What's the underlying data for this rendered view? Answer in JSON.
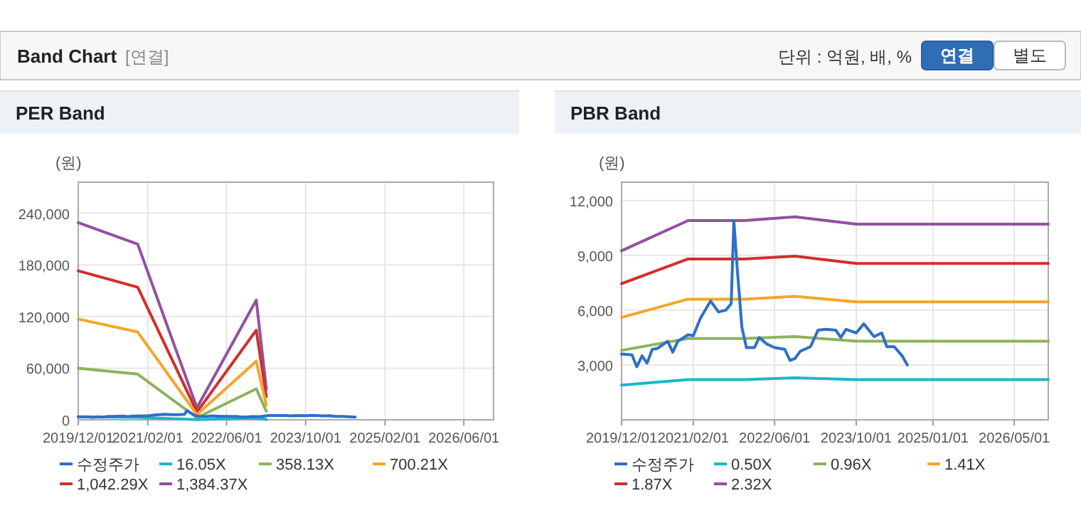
{
  "chart_data": [
    {
      "type": "other",
      "title": "Band Chart",
      "annotations": [
        "[연결]",
        "단위 : 억원, 배, %",
        "연결",
        "별도"
      ]
    },
    {
      "type": "line",
      "title": "PER Band",
      "ylabel": "(원)",
      "grid": true,
      "legend": "bottom",
      "xlim": [
        "2019-12-01",
        "2026-12-01"
      ],
      "ylim": [
        0,
        276000
      ],
      "xticks": [
        {
          "value": "2019-12-01",
          "label": "2019/12/01"
        },
        {
          "value": "2021-02-01",
          "label": "2021/02/01"
        },
        {
          "value": "2022-06-01",
          "label": "2022/06/01"
        },
        {
          "value": "2023-10-01",
          "label": "2023/10/01"
        },
        {
          "value": "2025-02-01",
          "label": "2025/02/01"
        },
        {
          "value": "2026-06-01",
          "label": "2026/06/01"
        }
      ],
      "yticks": [
        {
          "value": 0,
          "label": "0"
        },
        {
          "value": 60000,
          "label": "60,000"
        },
        {
          "value": 120000,
          "label": "120,000"
        },
        {
          "value": 180000,
          "label": "180,000"
        },
        {
          "value": 240000,
          "label": "240,000"
        }
      ],
      "series": [
        {
          "name": "수정주가",
          "color": "#2f6fc8",
          "x": [
            "2019-12-01",
            "2020-02-01",
            "2020-03-01",
            "2020-04-01",
            "2020-05-01",
            "2020-06-01",
            "2020-07-01",
            "2020-09-01",
            "2020-10-01",
            "2020-11-01",
            "2021-01-01",
            "2021-02-01",
            "2021-03-15",
            "2021-05-15",
            "2021-07-01",
            "2021-08-15",
            "2021-09-15",
            "2021-10-01",
            "2021-10-20",
            "2021-11-18",
            "2021-12-15",
            "2022-02-01",
            "2022-03-01",
            "2022-04-15",
            "2022-06-01",
            "2022-08-01",
            "2022-09-01",
            "2022-10-01",
            "2022-11-01",
            "2023-01-01",
            "2023-02-15",
            "2023-04-01",
            "2023-06-01",
            "2023-07-01",
            "2023-08-01",
            "2023-10-01",
            "2023-11-15",
            "2024-01-15",
            "2024-03-01",
            "2024-04-01",
            "2024-05-15",
            "2024-07-01",
            "2024-08-01"
          ],
          "values": [
            3600,
            3550,
            2900,
            3500,
            3100,
            3850,
            3900,
            4300,
            3700,
            4300,
            4650,
            4600,
            5550,
            6500,
            5900,
            6000,
            6350,
            10900,
            8400,
            5050,
            3950,
            3950,
            4500,
            4150,
            3950,
            3850,
            3250,
            3350,
            3750,
            4000,
            4900,
            4950,
            4900,
            4500,
            4950,
            4750,
            5250,
            4550,
            4750,
            4000,
            4000,
            3500,
            3000
          ]
        },
        {
          "name": "16.05X",
          "color": "#1fb5c9",
          "x": [
            "2019-12-01",
            "2020-12-01",
            "2021-12-01",
            "2022-12-01",
            "2023-02-01"
          ],
          "values": [
            3300,
            2900,
            200,
            2000,
            500
          ]
        },
        {
          "name": "358.13X",
          "color": "#8db35a",
          "x": [
            "2019-12-01",
            "2020-12-01",
            "2021-12-01",
            "2022-12-01",
            "2023-02-01"
          ],
          "values": [
            60000,
            53000,
            2500,
            36000,
            10000
          ]
        },
        {
          "name": "700.21X",
          "color": "#f5a52a",
          "x": [
            "2019-12-01",
            "2020-12-01",
            "2021-12-01",
            "2022-12-01",
            "2023-02-01"
          ],
          "values": [
            117000,
            102000,
            6000,
            68000,
            17000
          ]
        },
        {
          "name": "1,042.29X",
          "color": "#d12f2a",
          "x": [
            "2019-12-01",
            "2020-12-01",
            "2021-12-01",
            "2022-12-01",
            "2023-02-01"
          ],
          "values": [
            173000,
            154000,
            9000,
            104000,
            27000
          ]
        },
        {
          "name": "1,384.37X",
          "color": "#9350a0",
          "x": [
            "2019-12-01",
            "2020-12-01",
            "2021-12-01",
            "2022-12-01",
            "2023-02-01"
          ],
          "values": [
            229000,
            204000,
            14000,
            139000,
            36000
          ]
        }
      ]
    },
    {
      "type": "line",
      "title": "PBR Band",
      "ylabel": "(원)",
      "grid": true,
      "legend": "bottom",
      "xlim": [
        "2019-12-01",
        "2026-11-20"
      ],
      "ylim": [
        0,
        13000
      ],
      "xticks": [
        {
          "value": "2019-12-01",
          "label": "2019/12/01"
        },
        {
          "value": "2021-02-01",
          "label": "2021/02/01"
        },
        {
          "value": "2022-06-01",
          "label": "2022/06/01"
        },
        {
          "value": "2023-10-01",
          "label": "2023/10/01"
        },
        {
          "value": "2025-01-01",
          "label": "2025/01/01"
        },
        {
          "value": "2026-05-01",
          "label": "2026/05/01"
        }
      ],
      "yticks": [
        {
          "value": 3000,
          "label": "3,000"
        },
        {
          "value": 6000,
          "label": "6,000"
        },
        {
          "value": 9000,
          "label": "9,000"
        },
        {
          "value": 12000,
          "label": "12,000"
        }
      ],
      "series": [
        {
          "name": "수정주가",
          "color": "#2f6fc8",
          "x": [
            "2019-12-01",
            "2020-02-01",
            "2020-03-01",
            "2020-04-01",
            "2020-05-01",
            "2020-06-01",
            "2020-07-01",
            "2020-09-01",
            "2020-10-01",
            "2020-11-01",
            "2021-01-01",
            "2021-02-01",
            "2021-03-15",
            "2021-05-15",
            "2021-07-01",
            "2021-08-15",
            "2021-09-15",
            "2021-10-01",
            "2021-10-20",
            "2021-11-18",
            "2021-12-15",
            "2022-02-01",
            "2022-03-01",
            "2022-04-15",
            "2022-06-01",
            "2022-08-01",
            "2022-09-01",
            "2022-10-01",
            "2022-11-01",
            "2023-01-01",
            "2023-02-15",
            "2023-04-01",
            "2023-06-01",
            "2023-07-01",
            "2023-08-01",
            "2023-10-01",
            "2023-11-15",
            "2024-01-15",
            "2024-03-01",
            "2024-04-01",
            "2024-05-15",
            "2024-07-01",
            "2024-08-01"
          ],
          "values": [
            3600,
            3550,
            2900,
            3500,
            3100,
            3850,
            3900,
            4300,
            3700,
            4300,
            4650,
            4600,
            5550,
            6500,
            5900,
            6000,
            6350,
            10900,
            8400,
            5050,
            3950,
            3950,
            4500,
            4150,
            3950,
            3850,
            3250,
            3350,
            3750,
            4000,
            4900,
            4950,
            4900,
            4500,
            4950,
            4750,
            5250,
            4550,
            4750,
            4000,
            4000,
            3500,
            3000
          ]
        },
        {
          "name": "0.50X",
          "color": "#1fb5c9",
          "x": [
            "2019-12-01",
            "2021-01-01",
            "2021-12-01",
            "2022-10-01",
            "2023-10-01",
            "2026-11-20"
          ],
          "values": [
            1900,
            2200,
            2200,
            2300,
            2200,
            2200
          ]
        },
        {
          "name": "0.96X",
          "color": "#8db35a",
          "x": [
            "2019-12-01",
            "2021-01-01",
            "2021-12-01",
            "2022-10-01",
            "2023-10-01",
            "2026-11-20"
          ],
          "values": [
            3800,
            4450,
            4450,
            4550,
            4300,
            4300
          ]
        },
        {
          "name": "1.41X",
          "color": "#f5a52a",
          "x": [
            "2019-12-01",
            "2021-01-01",
            "2021-12-01",
            "2022-10-01",
            "2023-10-01",
            "2026-11-20"
          ],
          "values": [
            5600,
            6600,
            6600,
            6750,
            6450,
            6450
          ]
        },
        {
          "name": "1.87X",
          "color": "#d12f2a",
          "x": [
            "2019-12-01",
            "2021-01-01",
            "2021-12-01",
            "2022-10-01",
            "2023-10-01",
            "2026-11-20"
          ],
          "values": [
            7450,
            8800,
            8800,
            8950,
            8550,
            8550
          ]
        },
        {
          "name": "2.32X",
          "color": "#9350a0",
          "x": [
            "2019-12-01",
            "2021-01-01",
            "2021-12-01",
            "2022-10-01",
            "2023-10-01",
            "2026-11-20"
          ],
          "values": [
            9250,
            10900,
            10900,
            11100,
            10700,
            10700
          ]
        }
      ]
    }
  ]
}
